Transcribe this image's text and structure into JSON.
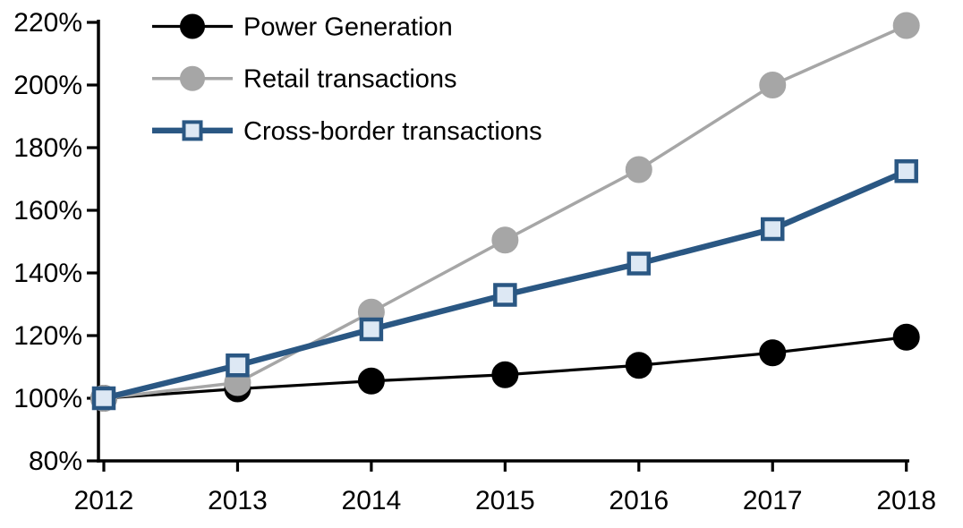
{
  "chart_data": {
    "type": "line",
    "title": "",
    "xlabel": "",
    "ylabel": "",
    "x": [
      "2012",
      "2013",
      "2014",
      "2015",
      "2016",
      "2017",
      "2018"
    ],
    "ylim": [
      80,
      220
    ],
    "ytick_step": 20,
    "yticks": [
      "220%",
      "200%",
      "180%",
      "160%",
      "140%",
      "120%",
      "100%",
      "80%"
    ],
    "grid": false,
    "legend_position": "top-left-inside",
    "axis_color": "#000000",
    "background_color": "#ffffff",
    "series": [
      {
        "name": "Power Generation",
        "values": [
          100,
          103,
          105.5,
          107.5,
          110.5,
          114.5,
          119.5
        ],
        "line_color": "#000000",
        "line_width": 3.2,
        "marker": "circle",
        "marker_fill": "#000000",
        "marker_stroke": "#000000"
      },
      {
        "name": "Retail transactions",
        "values": [
          100,
          105,
          127.5,
          150.5,
          173,
          200,
          219
        ],
        "line_color": "#A6A6A6",
        "line_width": 3.5,
        "marker": "circle",
        "marker_fill": "#A6A6A6",
        "marker_stroke": "#A6A6A6"
      },
      {
        "name": "Cross-border transactions",
        "values": [
          100,
          110.5,
          122,
          133,
          143,
          154,
          172.5
        ],
        "line_color": "#2A5783",
        "line_width": 6.5,
        "marker": "square",
        "marker_fill": "#DDE8F4",
        "marker_stroke": "#2A5783"
      }
    ]
  }
}
